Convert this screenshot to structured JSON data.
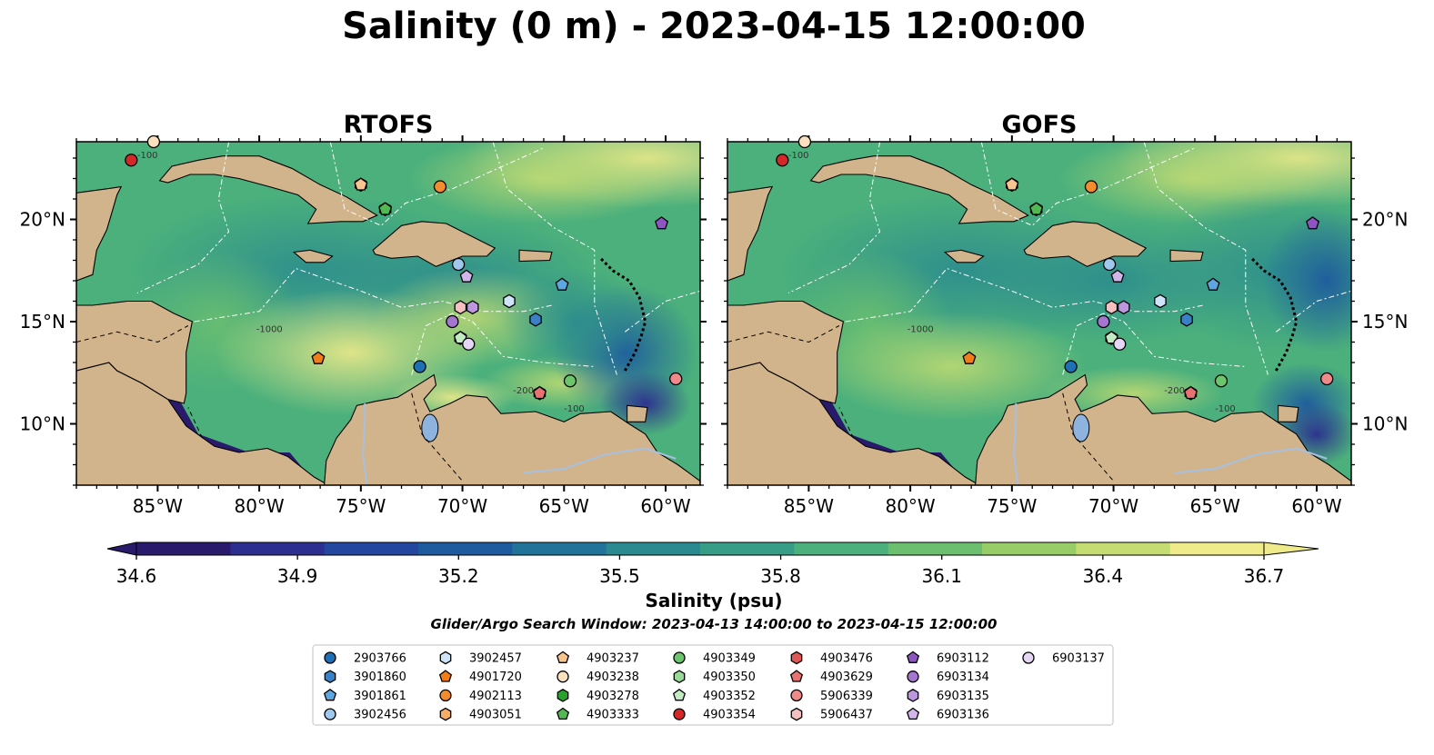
{
  "title": "Salinity (0 m) - 2023-04-15 12:00:00",
  "panels": [
    {
      "title": "RTOFS"
    },
    {
      "title": "GOFS"
    }
  ],
  "axes": {
    "lon_ticks": [
      -85,
      -80,
      -75,
      -70,
      -65,
      -60
    ],
    "lon_labels": [
      "85°W",
      "80°W",
      "75°W",
      "70°W",
      "65°W",
      "60°W"
    ],
    "lat_ticks": [
      10,
      15,
      20
    ],
    "lat_labels": [
      "10°N",
      "15°N",
      "20°N"
    ],
    "lon_range": [
      -89,
      -58.3
    ],
    "lat_range": [
      7,
      23.8
    ]
  },
  "colorbar": {
    "label": "Salinity (psu)",
    "ticks": [
      "34.6",
      "34.9",
      "35.2",
      "35.5",
      "35.8",
      "36.1",
      "36.4",
      "36.7"
    ],
    "min": 34.6,
    "max": 36.7,
    "colors": [
      "#2a1a6b",
      "#2c2f8f",
      "#25469f",
      "#1e5b9e",
      "#21739a",
      "#2a8a8f",
      "#379d86",
      "#4bb07c",
      "#6cbf6f",
      "#97cc66",
      "#c4dc72",
      "#efea8a"
    ],
    "extend": "both"
  },
  "subtitle": "Glider/Argo Search Window: 2023-04-13 14:00:00 to 2023-04-15 12:00:00",
  "contour_labels": [
    "-100",
    "-1000",
    "-200"
  ],
  "chart_data": {
    "type": "heatmap",
    "variable": "Salinity",
    "units": "psu",
    "depth": "0 m",
    "time": "2023-04-15 12:00:00",
    "models": [
      "RTOFS",
      "GOFS"
    ],
    "color_range": [
      34.6,
      36.7
    ],
    "observations": [
      {
        "id": "2903766",
        "marker": "circle",
        "color": "#1f6fb4",
        "lon": -72.1,
        "lat": 12.8
      },
      {
        "id": "3901860",
        "marker": "hexagon",
        "color": "#3a80c6",
        "lon": -66.4,
        "lat": 15.1
      },
      {
        "id": "3901861",
        "marker": "pentagon",
        "color": "#5ea6e0",
        "lon": -65.1,
        "lat": 16.8
      },
      {
        "id": "3902456",
        "marker": "circle",
        "color": "#9ec8ee",
        "lon": -70.2,
        "lat": 17.8
      },
      {
        "id": "3902457",
        "marker": "hexagon",
        "color": "#cfe4f8",
        "lon": -67.7,
        "lat": 16.0
      },
      {
        "id": "4901720",
        "marker": "pentagon",
        "color": "#f07d1a",
        "lon": -77.1,
        "lat": 13.2
      },
      {
        "id": "4902113",
        "marker": "circle",
        "color": "#f28c2e",
        "lon": -71.1,
        "lat": 21.6
      },
      {
        "id": "4903051",
        "marker": "hexagon",
        "color": "#f6ae66",
        "lon": -75.0,
        "lat": 21.7
      },
      {
        "id": "4903237",
        "marker": "pentagon",
        "color": "#f8c58f",
        "lon": -75.0,
        "lat": 21.7
      },
      {
        "id": "4903238",
        "marker": "circle",
        "color": "#fbe0c0",
        "lon": -85.2,
        "lat": 23.8
      },
      {
        "id": "4903278",
        "marker": "hexagon",
        "color": "#2ca02c",
        "lon": -73.8,
        "lat": 20.5
      },
      {
        "id": "4903333",
        "marker": "pentagon",
        "color": "#53b853",
        "lon": -73.8,
        "lat": 20.5
      },
      {
        "id": "4903349",
        "marker": "circle",
        "color": "#6cc46c",
        "lon": -64.7,
        "lat": 12.1
      },
      {
        "id": "4903350",
        "marker": "hexagon",
        "color": "#9ad99a",
        "lon": -70.1,
        "lat": 14.2
      },
      {
        "id": "4903352",
        "marker": "pentagon",
        "color": "#c3ebc3",
        "lon": -70.1,
        "lat": 14.2
      },
      {
        "id": "4903354",
        "marker": "circle",
        "color": "#d62728",
        "lon": -86.3,
        "lat": 22.9
      },
      {
        "id": "4903476",
        "marker": "hexagon",
        "color": "#e05757",
        "lon": -66.2,
        "lat": 11.5
      },
      {
        "id": "4903629",
        "marker": "pentagon",
        "color": "#e87272",
        "lon": -66.2,
        "lat": 11.5
      },
      {
        "id": "5906339",
        "marker": "circle",
        "color": "#f08a8a",
        "lon": -59.5,
        "lat": 12.2
      },
      {
        "id": "5906437",
        "marker": "hexagon",
        "color": "#f7c0c0",
        "lon": -70.1,
        "lat": 15.7
      },
      {
        "id": "6903112",
        "marker": "pentagon",
        "color": "#8c55c0",
        "lon": -60.2,
        "lat": 19.8
      },
      {
        "id": "6903134",
        "marker": "circle",
        "color": "#a476cf",
        "lon": -70.5,
        "lat": 15.0
      },
      {
        "id": "6903135",
        "marker": "hexagon",
        "color": "#bd97dd",
        "lon": -69.5,
        "lat": 15.7
      },
      {
        "id": "6903136",
        "marker": "pentagon",
        "color": "#d2b6ea",
        "lon": -69.8,
        "lat": 17.2
      },
      {
        "id": "6903137",
        "marker": "circle",
        "color": "#e6d6f6",
        "lon": -69.7,
        "lat": 13.9
      }
    ]
  }
}
